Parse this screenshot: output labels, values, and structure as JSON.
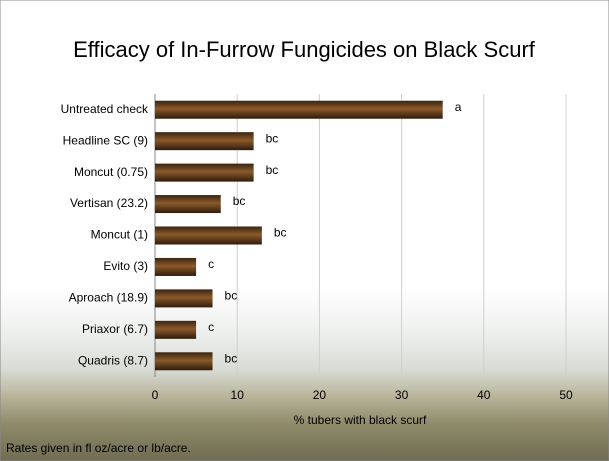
{
  "chart_data": {
    "type": "bar",
    "orientation": "horizontal",
    "title": "Efficacy of In-Furrow Fungicides on Black Scurf",
    "x_label": "% tubers with black scurf",
    "footnote": "Rates given in fl oz/acre or lb/acre.",
    "categories": [
      "Untreated check",
      "Headline SC (9)",
      "Moncut (0.75)",
      "Vertisan (23.2)",
      "Moncut (1)",
      "Evito (3)",
      "Aproach (18.9)",
      "Priaxor (6.7)",
      "Quadris (8.7)"
    ],
    "values": [
      35,
      12,
      12,
      8,
      13,
      5,
      7,
      5,
      7
    ],
    "annotations": [
      "a",
      "bc",
      "bc",
      "bc",
      "bc",
      "c",
      "bc",
      "c",
      "bc"
    ],
    "color": "#8b5a2b",
    "xlim": [
      0,
      50
    ],
    "xticks": [
      0,
      10,
      20,
      30,
      40,
      50
    ],
    "grid": true
  }
}
